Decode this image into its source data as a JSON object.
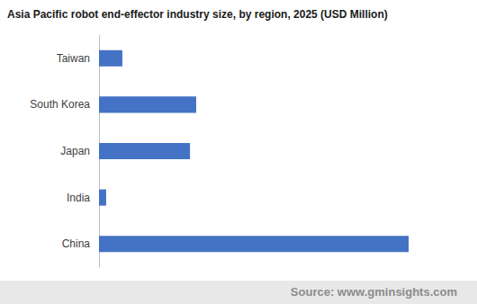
{
  "chart_data": {
    "type": "bar",
    "orientation": "horizontal",
    "title": "Asia Pacific robot end-effector industry size, by region, 2025 (USD Million)",
    "source": "Source: www.gminsights.com",
    "categories": [
      "China",
      "India",
      "Japan",
      "South Korea",
      "Taiwan"
    ],
    "values": [
      1300,
      30,
      382,
      408,
      98
    ],
    "color": "#4472c4",
    "xlim": [
      0,
      1500
    ],
    "grid": false,
    "tick_labels": "y"
  }
}
